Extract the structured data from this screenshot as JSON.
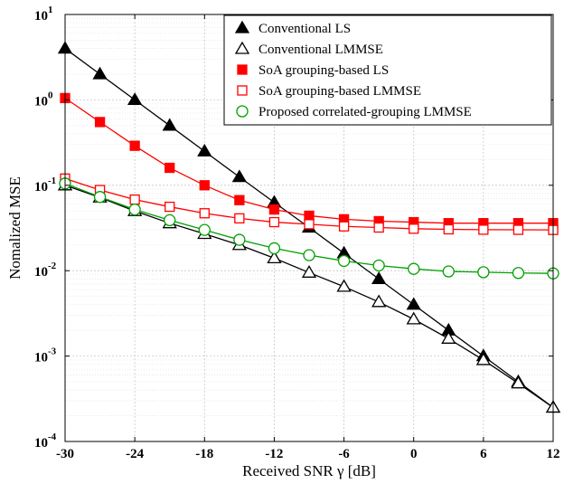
{
  "chart_data": {
    "type": "line",
    "xlabel": "Received SNR γ [dB]",
    "ylabel": "Nomalized MSE",
    "x_ticks": [
      "-30",
      "-24",
      "-18",
      "-12",
      "-6",
      "0",
      "6",
      "12"
    ],
    "y_ticks": [
      {
        "base": "10",
        "exp": "1"
      },
      {
        "base": "10",
        "exp": "0"
      },
      {
        "base": "10",
        "exp": "-1"
      },
      {
        "base": "10",
        "exp": "-2"
      },
      {
        "base": "10",
        "exp": "-3"
      },
      {
        "base": "10",
        "exp": "-4"
      }
    ],
    "xlim": [
      -30,
      12
    ],
    "ylim": [
      0.0001,
      10
    ],
    "yscale": "log",
    "grid": true,
    "legend_position": "top-right",
    "x": [
      -30,
      -27,
      -24,
      -21,
      -18,
      -15,
      -12,
      -9,
      -6,
      -3,
      0,
      3,
      6,
      9,
      12
    ],
    "series": [
      {
        "name": "Conventional LS",
        "color": "#000000",
        "marker": "triangle-filled",
        "values": [
          4.0,
          2.0,
          1.0,
          0.5,
          0.25,
          0.125,
          0.063,
          0.032,
          0.016,
          0.008,
          0.004,
          0.002,
          0.001,
          0.0005,
          0.00025
        ]
      },
      {
        "name": "Conventional LMMSE",
        "color": "#000000",
        "marker": "triangle-open",
        "values": [
          0.1,
          0.072,
          0.05,
          0.036,
          0.027,
          0.02,
          0.014,
          0.0095,
          0.0065,
          0.0043,
          0.0027,
          0.0016,
          0.0009,
          0.00048,
          0.00025
        ]
      },
      {
        "name": "SoA grouping-based LS",
        "color": "#ff0000",
        "marker": "square-filled",
        "values": [
          1.05,
          0.55,
          0.29,
          0.16,
          0.1,
          0.067,
          0.052,
          0.044,
          0.04,
          0.038,
          0.037,
          0.036,
          0.036,
          0.036,
          0.036
        ]
      },
      {
        "name": "SoA grouping-based LMMSE",
        "color": "#ff0000",
        "marker": "square-open",
        "values": [
          0.12,
          0.088,
          0.068,
          0.056,
          0.047,
          0.041,
          0.037,
          0.035,
          0.033,
          0.032,
          0.031,
          0.0305,
          0.0302,
          0.0301,
          0.03
        ]
      },
      {
        "name": "Proposed correlated-grouping LMMSE",
        "color": "#00a000",
        "marker": "circle-open",
        "values": [
          0.105,
          0.073,
          0.052,
          0.039,
          0.03,
          0.023,
          0.0183,
          0.0152,
          0.013,
          0.0115,
          0.0105,
          0.0098,
          0.0096,
          0.0094,
          0.0093
        ]
      }
    ]
  }
}
